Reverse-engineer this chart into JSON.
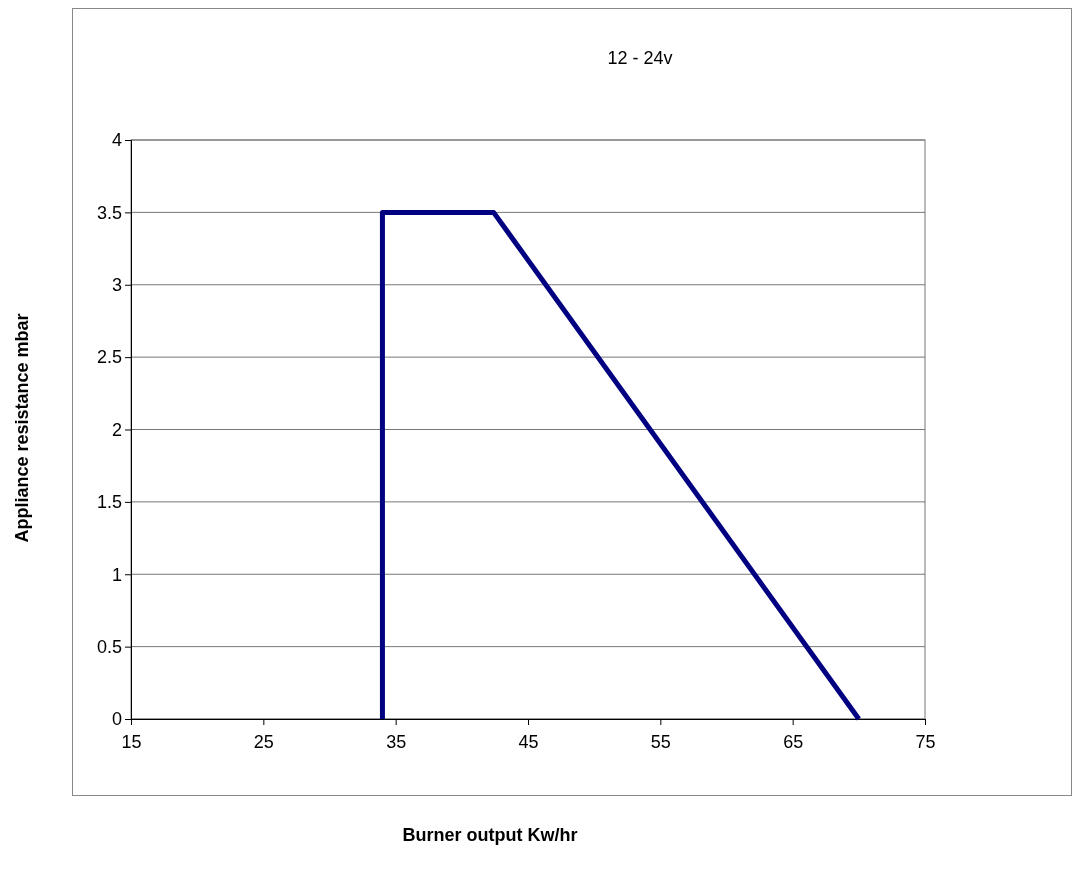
{
  "chart_data": {
    "type": "line",
    "title": "12 - 24v",
    "xlabel": "Burner output Kw/hr",
    "ylabel": "Appliance resistance mbar",
    "series": [
      {
        "color": "#000080",
        "x": [
          34,
          34,
          42.4,
          70
        ],
        "values": [
          0,
          3.5,
          3.5,
          0
        ]
      }
    ],
    "xlim": [
      15,
      75
    ],
    "xticks": [
      15,
      25,
      35,
      45,
      55,
      65,
      75
    ],
    "ylim": [
      0,
      4
    ],
    "yticks": [
      0,
      0.5,
      1,
      1.5,
      2,
      2.5,
      3,
      3.5,
      4
    ],
    "grid": "y",
    "marker": "none",
    "line_style": "solid"
  }
}
